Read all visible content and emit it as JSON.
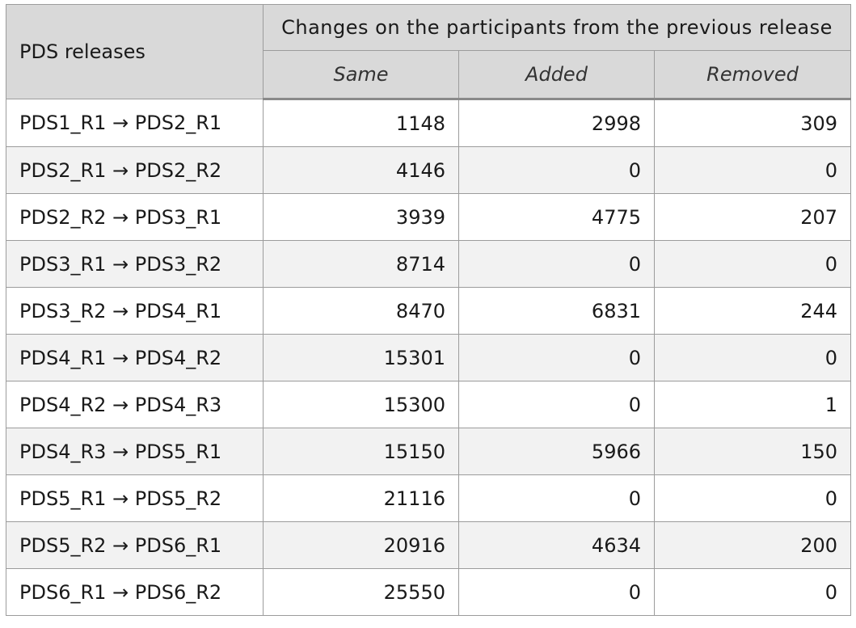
{
  "table": {
    "header": {
      "corner": "PDS releases",
      "group": "Changes on the participants from the previous release",
      "columns": [
        "Same",
        "Added",
        "Removed"
      ]
    },
    "rows": [
      {
        "release": "PDS1_R1 → PDS2_R1",
        "same": "1148",
        "added": "2998",
        "removed": "309"
      },
      {
        "release": "PDS2_R1 → PDS2_R2",
        "same": "4146",
        "added": "0",
        "removed": "0"
      },
      {
        "release": "PDS2_R2 → PDS3_R1",
        "same": "3939",
        "added": "4775",
        "removed": "207"
      },
      {
        "release": "PDS3_R1 → PDS3_R2",
        "same": "8714",
        "added": "0",
        "removed": "0"
      },
      {
        "release": "PDS3_R2 → PDS4_R1",
        "same": "8470",
        "added": "6831",
        "removed": "244"
      },
      {
        "release": "PDS4_R1 → PDS4_R2",
        "same": "15301",
        "added": "0",
        "removed": "0"
      },
      {
        "release": "PDS4_R2 → PDS4_R3",
        "same": "15300",
        "added": "0",
        "removed": "1"
      },
      {
        "release": "PDS4_R3 → PDS5_R1",
        "same": "15150",
        "added": "5966",
        "removed": "150"
      },
      {
        "release": "PDS5_R1 → PDS5_R2",
        "same": "21116",
        "added": "0",
        "removed": "0"
      },
      {
        "release": "PDS5_R2 → PDS6_R1",
        "same": "20916",
        "added": "4634",
        "removed": "200"
      },
      {
        "release": "PDS6_R1 → PDS6_R2",
        "same": "25550",
        "added": "0",
        "removed": "0"
      }
    ]
  }
}
